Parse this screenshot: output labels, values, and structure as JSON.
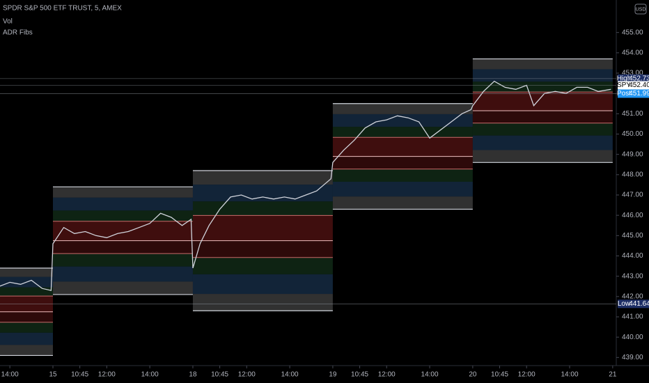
{
  "chart_data": {
    "type": "line",
    "title": "SPDR S&P 500 ETF TRUST, 5, AMEX",
    "indicators": [
      "Vol",
      "ADR Fibs"
    ],
    "currency": "USD",
    "color": "#d1d4dc",
    "x": [
      48,
      54,
      60,
      66,
      72,
      77,
      78,
      84,
      90,
      96,
      102,
      108,
      114,
      120,
      126,
      132,
      138,
      144,
      150,
      155,
      156,
      160,
      165,
      171,
      177,
      183,
      189,
      195,
      201,
      207,
      213,
      219,
      225,
      233,
      234,
      240,
      246,
      252,
      258,
      264,
      270,
      276,
      282,
      288,
      294,
      300,
      306,
      311,
      312,
      318,
      324,
      330,
      336,
      342,
      346,
      352,
      358,
      364,
      370,
      376,
      382,
      389
    ],
    "values": [
      442.5,
      442.7,
      442.6,
      442.8,
      442.4,
      442.3,
      444.6,
      445.4,
      445.1,
      445.2,
      445.0,
      444.9,
      445.1,
      445.2,
      445.4,
      445.6,
      446.1,
      445.9,
      445.5,
      445.8,
      443.4,
      444.6,
      445.5,
      446.3,
      446.9,
      447.0,
      446.8,
      446.9,
      446.8,
      446.9,
      446.8,
      447.0,
      447.2,
      447.8,
      448.6,
      449.2,
      449.7,
      450.3,
      450.6,
      450.7,
      450.9,
      450.8,
      450.6,
      449.8,
      450.2,
      450.6,
      451.0,
      451.2,
      451.4,
      452.1,
      452.6,
      452.3,
      452.2,
      452.4,
      451.4,
      452.0,
      452.1,
      452.0,
      452.3,
      452.3,
      452.1,
      452.2
    ],
    "xlim": [
      48.5,
      392
    ],
    "ylim": [
      438.6,
      456.6
    ],
    "xticks": [
      {
        "value": 54,
        "label": "14:00"
      },
      {
        "value": 78,
        "label": "15"
      },
      {
        "value": 93,
        "label": "10:45"
      },
      {
        "value": 108,
        "label": "12:00"
      },
      {
        "value": 132,
        "label": "14:00"
      },
      {
        "value": 156,
        "label": "18"
      },
      {
        "value": 171,
        "label": "10:45"
      },
      {
        "value": 186,
        "label": "12:00"
      },
      {
        "value": 210,
        "label": "14:00"
      },
      {
        "value": 234,
        "label": "19"
      },
      {
        "value": 249,
        "label": "10:45"
      },
      {
        "value": 264,
        "label": "12:00"
      },
      {
        "value": 288,
        "label": "14:00"
      },
      {
        "value": 312,
        "label": "20"
      },
      {
        "value": 327,
        "label": "10:45"
      },
      {
        "value": 342,
        "label": "12:00"
      },
      {
        "value": 366,
        "label": "14:00"
      },
      {
        "value": 390,
        "label": "21"
      }
    ],
    "yticks": [
      {
        "value": 439,
        "label": "439.00"
      },
      {
        "value": 440,
        "label": "440.00"
      },
      {
        "value": 441,
        "label": "441.00"
      },
      {
        "value": 442,
        "label": "442.00"
      },
      {
        "value": 443,
        "label": "443.00"
      },
      {
        "value": 444,
        "label": "444.00"
      },
      {
        "value": 445,
        "label": "445.00"
      },
      {
        "value": 446,
        "label": "446.00"
      },
      {
        "value": 447,
        "label": "447.00"
      },
      {
        "value": 448,
        "label": "448.00"
      },
      {
        "value": 449,
        "label": "449.00"
      },
      {
        "value": 450,
        "label": "450.00"
      },
      {
        "value": 451,
        "label": "451.00"
      },
      {
        "value": 452,
        "label": "452.00"
      },
      {
        "value": 453,
        "label": "453.00"
      },
      {
        "value": 454,
        "label": "454.00"
      },
      {
        "value": 455,
        "label": "455.00"
      }
    ],
    "boxes": {
      "x_start": [
        40,
        78,
        156,
        234,
        312
      ],
      "x_end": [
        78,
        156,
        234,
        312,
        390
      ],
      "top": [
        443.4,
        447.4,
        448.2,
        451.5,
        453.7
      ],
      "bottom": [
        439.1,
        442.1,
        441.3,
        446.3,
        448.6
      ]
    },
    "markers": {
      "names": [
        "High",
        "SPY",
        "Post",
        "Low"
      ],
      "values": [
        452.73,
        452.4,
        451.99,
        441.64
      ],
      "value_labels": [
        "452.73",
        "452.40",
        "451.99",
        "441.64"
      ],
      "colors": [
        "#1e2f66",
        "#ffffff",
        "#2196f3",
        "#1e2f66"
      ]
    }
  }
}
